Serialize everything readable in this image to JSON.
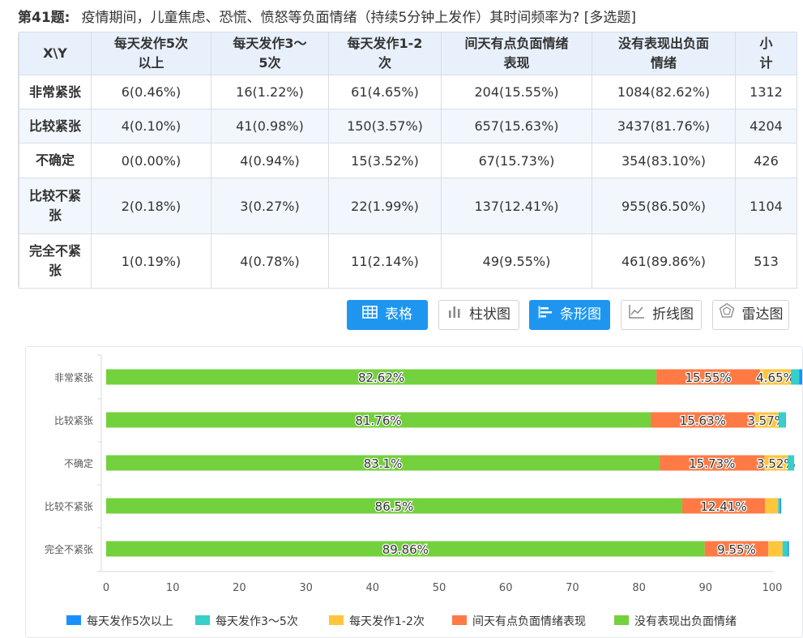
{
  "question": {
    "number": "第41题:",
    "text": "疫情期间，儿童焦虑、恐慌、愤怒等负面情绪（持续5分钟上发作）其时间频率为? [多选题]"
  },
  "table": {
    "corner": "X\\Y",
    "columns": [
      "每天发作5次以上",
      "每天发作3～5次",
      "每天发作1-2次",
      "间天有点负面情绪表现",
      "没有表现出负面情绪",
      "小计"
    ],
    "columns_lines": [
      [
        "每天发作5次",
        "以上"
      ],
      [
        "每天发作3～",
        "5次"
      ],
      [
        "每天发作1-2",
        "次"
      ],
      [
        "间天有点负面情绪",
        "表现"
      ],
      [
        "没有表现出负面",
        "情绪"
      ],
      [
        "小",
        "计"
      ]
    ],
    "rows": [
      {
        "label_lines": [
          "非常紧张"
        ],
        "cells": [
          "6(0.46%)",
          "16(1.22%)",
          "61(4.65%)",
          "204(15.55%)",
          "1084(82.62%)",
          "1312"
        ]
      },
      {
        "label_lines": [
          "比较紧张"
        ],
        "cells": [
          "4(0.10%)",
          "41(0.98%)",
          "150(3.57%)",
          "657(15.63%)",
          "3437(81.76%)",
          "4204"
        ]
      },
      {
        "label_lines": [
          "不确定"
        ],
        "cells": [
          "0(0.00%)",
          "4(0.94%)",
          "15(3.52%)",
          "67(15.73%)",
          "354(83.10%)",
          "426"
        ]
      },
      {
        "label_lines": [
          "比较不紧",
          "张"
        ],
        "cells": [
          "2(0.18%)",
          "3(0.27%)",
          "22(1.99%)",
          "137(12.41%)",
          "955(86.50%)",
          "1104"
        ]
      },
      {
        "label_lines": [
          "完全不紧",
          "张"
        ],
        "cells": [
          "1(0.19%)",
          "4(0.78%)",
          "11(2.14%)",
          "49(9.55%)",
          "461(89.86%)",
          "513"
        ]
      }
    ]
  },
  "toolbar": {
    "buttons": [
      {
        "label": "表格",
        "icon": "table-icon",
        "active": true
      },
      {
        "label": "柱状图",
        "icon": "bar-chart-icon",
        "active": false
      },
      {
        "label": "条形图",
        "icon": "horizontal-bar-icon",
        "active": true
      },
      {
        "label": "折线图",
        "icon": "line-chart-icon",
        "active": false
      },
      {
        "label": "雷达图",
        "icon": "radar-chart-icon",
        "active": false
      }
    ]
  },
  "chart_data": {
    "type": "bar",
    "orientation": "horizontal",
    "stacked": true,
    "categories": [
      "非常紧张",
      "比较紧张",
      "不确定",
      "比较不紧张",
      "完全不紧张"
    ],
    "series": [
      {
        "name": "没有表现出负面情绪",
        "color": "#73d13d",
        "values": [
          82.62,
          81.76,
          83.1,
          86.5,
          89.86
        ],
        "labels": [
          "82.62%",
          "81.76%",
          "83.1%",
          "86.5%",
          "89.86%"
        ]
      },
      {
        "name": "间天有点负面情绪表现",
        "color": "#ff7a45",
        "values": [
          15.55,
          15.63,
          15.73,
          12.41,
          9.55
        ],
        "labels": [
          "15.55%",
          "15.63%",
          "15.73%",
          "12.41%",
          "9.55%"
        ]
      },
      {
        "name": "每天发作1-2次",
        "color": "#ffc53d",
        "values": [
          4.65,
          3.57,
          3.52,
          1.99,
          2.14
        ],
        "labels": [
          "4.65%",
          "3.57%",
          "3.52%",
          "",
          ""
        ]
      },
      {
        "name": "每天发作3～5次",
        "color": "#36cfc9",
        "values": [
          1.22,
          0.98,
          0.94,
          0.27,
          0.78
        ],
        "labels": [
          "",
          "",
          "",
          "",
          ""
        ]
      },
      {
        "name": "每天发作5次以上",
        "color": "#1890ff",
        "values": [
          0.46,
          0.1,
          0.0,
          0.18,
          0.19
        ],
        "labels": [
          "",
          "",
          "",
          "",
          ""
        ]
      }
    ],
    "xlim": [
      0,
      100
    ],
    "xticks": [
      "0",
      "10",
      "20",
      "30",
      "40",
      "50",
      "60",
      "70",
      "80",
      "90",
      "100"
    ],
    "legend_order": [
      "每天发作5次以上",
      "每天发作3～5次",
      "每天发作1-2次",
      "间天有点负面情绪表现",
      "没有表现出负面情绪"
    ],
    "legend_position": "bottom"
  }
}
